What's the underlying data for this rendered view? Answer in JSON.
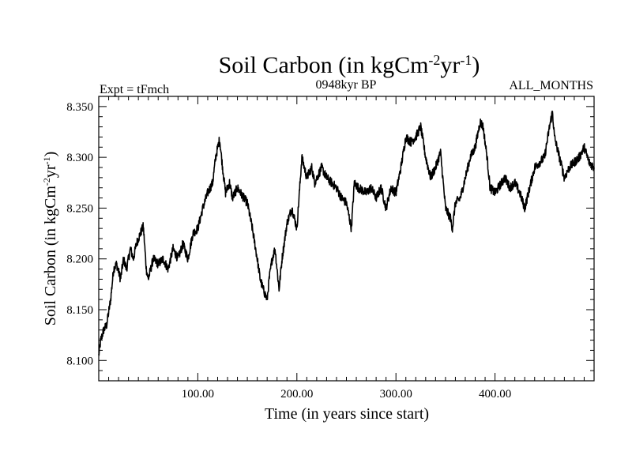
{
  "page": {
    "title_main": "Soil Carbon (in kgCm",
    "title_exp1": "-2",
    "title_mid": "yr",
    "title_exp2": "-1",
    "title_end": ")",
    "expt_label": "Expt = tFmch",
    "period_label": "0948kyr BP",
    "months_label": "ALL_MONTHS",
    "xlabel": "Time (in years since start)",
    "ylabel_main": "Soil Carbon (in kgCm",
    "ylabel_exp1": "-2",
    "ylabel_mid": "yr",
    "ylabel_exp2": "-1",
    "ylabel_end": ")"
  },
  "chart_data": {
    "type": "line",
    "title": "Soil Carbon (in kgCm-2yr-1)",
    "xlabel": "Time (in years since start)",
    "ylabel": "Soil Carbon (in kgCm-2yr-1)",
    "xlim": [
      0,
      500
    ],
    "ylim": [
      8.08,
      8.36
    ],
    "xticks": [
      100,
      200,
      300,
      400
    ],
    "xtick_labels": [
      "100.00",
      "200.00",
      "300.00",
      "400.00"
    ],
    "yticks": [
      8.1,
      8.15,
      8.2,
      8.25,
      8.3,
      8.35
    ],
    "ytick_labels": [
      "8.100",
      "8.150",
      "8.200",
      "8.250",
      "8.300",
      "8.350"
    ],
    "line_color": "#000000",
    "series": [
      {
        "name": "Soil Carbon",
        "x": [
          0,
          2,
          5,
          8,
          12,
          15,
          18,
          22,
          25,
          28,
          32,
          35,
          38,
          42,
          45,
          48,
          50,
          55,
          60,
          65,
          70,
          75,
          80,
          85,
          90,
          95,
          100,
          105,
          110,
          115,
          118,
          122,
          125,
          128,
          132,
          135,
          140,
          145,
          150,
          155,
          160,
          163,
          166,
          170,
          172,
          175,
          178,
          182,
          185,
          190,
          195,
          200,
          205,
          210,
          215,
          218,
          225,
          230,
          240,
          245,
          250,
          255,
          258,
          262,
          270,
          275,
          280,
          285,
          290,
          295,
          300,
          305,
          310,
          315,
          320,
          325,
          330,
          335,
          340,
          345,
          350,
          355,
          357,
          360,
          365,
          370,
          375,
          380,
          385,
          388,
          392,
          395,
          400,
          410,
          415,
          420,
          425,
          430,
          435,
          440,
          445,
          450,
          455,
          458,
          460,
          465,
          470,
          475,
          480,
          485,
          490,
          495,
          500
        ],
        "values": [
          8.105,
          8.12,
          8.13,
          8.135,
          8.16,
          8.19,
          8.195,
          8.18,
          8.2,
          8.19,
          8.21,
          8.2,
          8.215,
          8.225,
          8.232,
          8.19,
          8.18,
          8.2,
          8.195,
          8.2,
          8.19,
          8.21,
          8.2,
          8.215,
          8.2,
          8.225,
          8.23,
          8.25,
          8.265,
          8.275,
          8.3,
          8.318,
          8.29,
          8.265,
          8.275,
          8.26,
          8.27,
          8.262,
          8.255,
          8.23,
          8.2,
          8.18,
          8.17,
          8.16,
          8.18,
          8.2,
          8.21,
          8.17,
          8.2,
          8.235,
          8.25,
          8.23,
          8.3,
          8.28,
          8.29,
          8.275,
          8.29,
          8.28,
          8.27,
          8.26,
          8.255,
          8.23,
          8.275,
          8.27,
          8.265,
          8.27,
          8.26,
          8.27,
          8.25,
          8.27,
          8.265,
          8.29,
          8.32,
          8.315,
          8.32,
          8.33,
          8.3,
          8.28,
          8.29,
          8.305,
          8.25,
          8.24,
          8.23,
          8.255,
          8.26,
          8.28,
          8.3,
          8.31,
          8.335,
          8.33,
          8.3,
          8.27,
          8.265,
          8.28,
          8.27,
          8.275,
          8.265,
          8.25,
          8.27,
          8.29,
          8.295,
          8.3,
          8.33,
          8.345,
          8.32,
          8.3,
          8.28,
          8.29,
          8.295,
          8.3,
          8.31,
          8.295,
          8.29
        ]
      }
    ]
  }
}
